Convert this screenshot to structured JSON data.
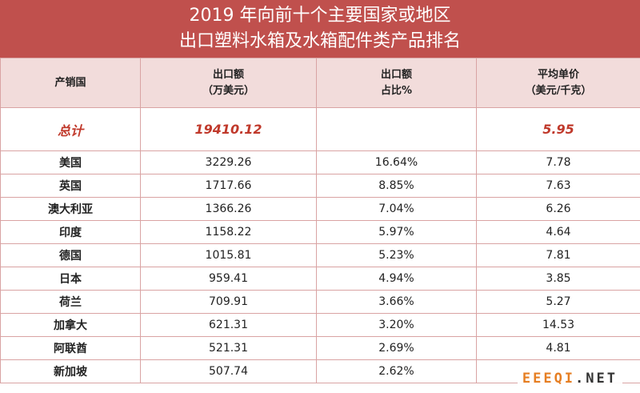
{
  "title": {
    "line1": "2019 年向前十个主要国家或地区",
    "line2": "出口塑料水箱及水箱配件类产品排名"
  },
  "headers": {
    "country": "产销国",
    "export_line1": "出口额",
    "export_line2": "（万美元）",
    "share_line1": "出口额",
    "share_line2": "占比%",
    "price_line1": "平均单价",
    "price_line2": "（美元/千克）"
  },
  "total": {
    "label": "总计",
    "export": "19410.12",
    "share": "",
    "price": "5.95"
  },
  "rows": [
    {
      "country": "美国",
      "export": "3229.26",
      "share": "16.64%",
      "price": "7.78"
    },
    {
      "country": "英国",
      "export": "1717.66",
      "share": "8.85%",
      "price": "7.63"
    },
    {
      "country": "澳大利亚",
      "export": "1366.26",
      "share": "7.04%",
      "price": "6.26"
    },
    {
      "country": "印度",
      "export": "1158.22",
      "share": "5.97%",
      "price": "4.64"
    },
    {
      "country": "德国",
      "export": "1015.81",
      "share": "5.23%",
      "price": "7.81"
    },
    {
      "country": "日本",
      "export": "959.41",
      "share": "4.94%",
      "price": "3.85"
    },
    {
      "country": "荷兰",
      "export": "709.91",
      "share": "3.66%",
      "price": "5.27"
    },
    {
      "country": "加拿大",
      "export": "621.31",
      "share": "3.20%",
      "price": "14.53"
    },
    {
      "country": "阿联酋",
      "export": "521.31",
      "share": "2.69%",
      "price": "4.81"
    },
    {
      "country": "新加坡",
      "export": "507.74",
      "share": "2.62%",
      "price": ""
    }
  ],
  "watermark": {
    "part1": "EEEQI",
    "part2": ".NET"
  }
}
